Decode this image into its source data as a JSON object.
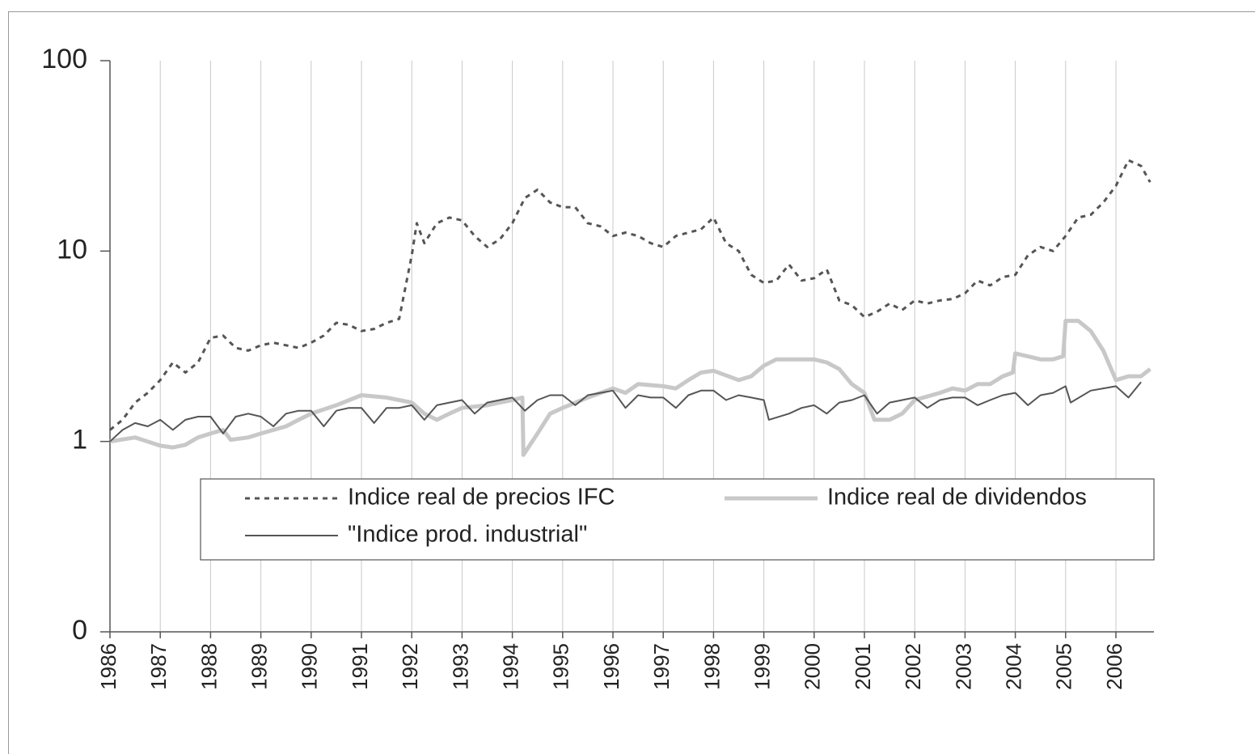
{
  "chart_data": {
    "type": "line",
    "log_y": true,
    "grid": true,
    "ylim": [
      0.1,
      100
    ],
    "yticks": [
      100,
      10,
      1,
      {
        "value": 0.1,
        "label": "0"
      }
    ],
    "xlim": [
      1986,
      2006.75
    ],
    "xticks": [
      1986,
      1987,
      1988,
      1989,
      1990,
      1991,
      1992,
      1993,
      1994,
      1995,
      1996,
      1997,
      1998,
      1999,
      2000,
      2001,
      2002,
      2003,
      2004,
      2005,
      2006
    ],
    "series": [
      {
        "name": "Indice real de precios IFC",
        "color": "#555555",
        "dashed": true,
        "x": [
          1986,
          1986.25,
          1986.5,
          1986.75,
          1987,
          1987.25,
          1987.5,
          1987.75,
          1988,
          1988.25,
          1988.5,
          1988.75,
          1989,
          1989.25,
          1989.5,
          1989.75,
          1990,
          1990.25,
          1990.5,
          1990.75,
          1991,
          1991.25,
          1991.5,
          1991.75,
          1992,
          1992.1,
          1992.25,
          1992.5,
          1992.75,
          1993,
          1993.25,
          1993.5,
          1993.75,
          1994,
          1994.25,
          1994.5,
          1994.75,
          1995,
          1995.25,
          1995.5,
          1995.75,
          1996,
          1996.25,
          1996.5,
          1996.75,
          1997,
          1997.25,
          1997.5,
          1997.75,
          1998,
          1998.25,
          1998.5,
          1998.75,
          1999,
          1999.25,
          1999.5,
          1999.75,
          2000,
          2000.25,
          2000.5,
          2000.75,
          2001,
          2001.25,
          2001.5,
          2001.75,
          2002,
          2002.25,
          2002.5,
          2002.75,
          2003,
          2003.25,
          2003.5,
          2003.75,
          2004,
          2004.25,
          2004.5,
          2004.75,
          2005,
          2005.25,
          2005.5,
          2005.75,
          2006,
          2006.25,
          2006.5,
          2006.68
        ],
        "values": [
          1.15,
          1.3,
          1.6,
          1.8,
          2.1,
          2.6,
          2.3,
          2.6,
          3.5,
          3.6,
          3.1,
          3.0,
          3.2,
          3.3,
          3.2,
          3.1,
          3.3,
          3.6,
          4.2,
          4.1,
          3.8,
          3.9,
          4.2,
          4.4,
          9.5,
          14,
          11,
          14,
          15,
          14.5,
          12,
          10.5,
          11.5,
          14,
          19,
          21,
          18,
          17,
          17,
          14,
          13.5,
          12,
          12.5,
          12,
          11,
          10.5,
          12,
          12.5,
          13,
          15,
          11,
          10,
          7.5,
          6.8,
          7,
          8.5,
          7,
          7.2,
          8,
          5.5,
          5.2,
          4.5,
          4.8,
          5.3,
          4.9,
          5.5,
          5.3,
          5.5,
          5.6,
          6.0,
          7.0,
          6.6,
          7.3,
          7.5,
          9.5,
          10.5,
          10,
          12,
          15,
          15.5,
          18,
          22,
          30,
          28,
          23
        ]
      },
      {
        "name": "Indice real de dividendos",
        "color": "#c8c8c8",
        "x": [
          1986,
          1986.5,
          1987,
          1987.25,
          1987.5,
          1987.75,
          1988,
          1988.25,
          1988.4,
          1988.75,
          1989,
          1989.5,
          1989.75,
          1990,
          1990.5,
          1991,
          1991.5,
          1991.75,
          1992,
          1992.25,
          1992.5,
          1992.75,
          1993,
          1993.5,
          1993.75,
          1994,
          1994.2,
          1994.22,
          1994.5,
          1994.75,
          1995,
          1995.5,
          1996,
          1996.25,
          1996.5,
          1997,
          1997.25,
          1997.5,
          1997.75,
          1998,
          1998.5,
          1998.75,
          1999,
          1999.25,
          1999.75,
          2000,
          2000.25,
          2000.5,
          2000.75,
          2001,
          2001.2,
          2001.5,
          2001.75,
          2002,
          2002.5,
          2002.75,
          2003,
          2003.25,
          2003.5,
          2003.75,
          2003.95,
          2004,
          2004.5,
          2004.75,
          2004.95,
          2005,
          2005.25,
          2005.5,
          2005.75,
          2006,
          2006.25,
          2006.5,
          2006.68
        ],
        "values": [
          1.0,
          1.05,
          0.95,
          0.93,
          0.96,
          1.05,
          1.1,
          1.15,
          1.02,
          1.05,
          1.1,
          1.2,
          1.3,
          1.4,
          1.55,
          1.75,
          1.7,
          1.65,
          1.6,
          1.4,
          1.3,
          1.4,
          1.5,
          1.55,
          1.6,
          1.65,
          1.7,
          0.85,
          1.1,
          1.4,
          1.5,
          1.7,
          1.9,
          1.8,
          2.0,
          1.95,
          1.9,
          2.1,
          2.3,
          2.35,
          2.1,
          2.2,
          2.5,
          2.7,
          2.7,
          2.7,
          2.6,
          2.4,
          2.0,
          1.8,
          1.3,
          1.3,
          1.4,
          1.65,
          1.8,
          1.9,
          1.85,
          2.0,
          2.0,
          2.2,
          2.3,
          2.9,
          2.7,
          2.7,
          2.8,
          4.3,
          4.3,
          3.8,
          3.0,
          2.1,
          2.2,
          2.2,
          2.4
        ]
      },
      {
        "name": "\"Indice prod. industrial\"",
        "color": "#555555",
        "x": [
          1986,
          1986.25,
          1986.5,
          1986.75,
          1987,
          1987.25,
          1987.5,
          1987.75,
          1988,
          1988.25,
          1988.5,
          1988.75,
          1989,
          1989.25,
          1989.5,
          1989.75,
          1990,
          1990.25,
          1990.5,
          1990.75,
          1991,
          1991.25,
          1991.5,
          1991.75,
          1992,
          1992.25,
          1992.5,
          1992.75,
          1993,
          1993.25,
          1993.5,
          1993.75,
          1994,
          1994.25,
          1994.5,
          1994.75,
          1995,
          1995.25,
          1995.5,
          1995.75,
          1996,
          1996.25,
          1996.5,
          1996.75,
          1997,
          1997.25,
          1997.5,
          1997.75,
          1998,
          1998.25,
          1998.5,
          1998.75,
          1999,
          1999.1,
          1999.5,
          1999.75,
          2000,
          2000.25,
          2000.5,
          2000.75,
          2001,
          2001.25,
          2001.5,
          2001.75,
          2002,
          2002.25,
          2002.5,
          2002.75,
          2003,
          2003.25,
          2003.5,
          2003.75,
          2004,
          2004.25,
          2004.5,
          2004.75,
          2005,
          2005.1,
          2005.5,
          2005.75,
          2006,
          2006.25,
          2006.5
        ],
        "values": [
          1.0,
          1.15,
          1.25,
          1.2,
          1.3,
          1.15,
          1.3,
          1.35,
          1.35,
          1.1,
          1.35,
          1.4,
          1.35,
          1.2,
          1.4,
          1.45,
          1.45,
          1.2,
          1.45,
          1.5,
          1.5,
          1.25,
          1.5,
          1.5,
          1.55,
          1.3,
          1.55,
          1.6,
          1.65,
          1.4,
          1.6,
          1.65,
          1.7,
          1.45,
          1.65,
          1.75,
          1.75,
          1.55,
          1.75,
          1.8,
          1.85,
          1.5,
          1.75,
          1.7,
          1.7,
          1.5,
          1.75,
          1.85,
          1.85,
          1.65,
          1.75,
          1.7,
          1.65,
          1.3,
          1.4,
          1.5,
          1.55,
          1.4,
          1.6,
          1.65,
          1.75,
          1.4,
          1.6,
          1.65,
          1.7,
          1.5,
          1.65,
          1.7,
          1.7,
          1.55,
          1.65,
          1.75,
          1.8,
          1.55,
          1.75,
          1.8,
          1.95,
          1.6,
          1.85,
          1.9,
          1.95,
          1.7,
          2.05
        ]
      }
    ]
  }
}
